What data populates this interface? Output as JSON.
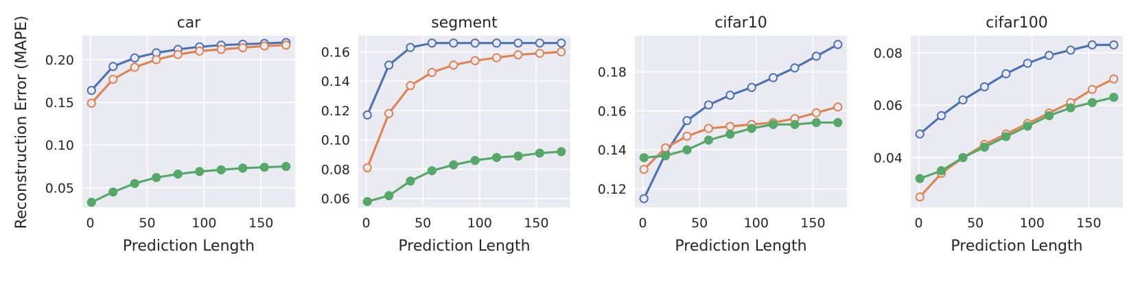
{
  "figure": {
    "ylabel": "Reconstruction Error (MAPE)"
  },
  "chart_data": [
    {
      "type": "line",
      "title": "car",
      "xlabel": "Prediction Length",
      "xlim": [
        -7,
        180
      ],
      "ylim": [
        0.027,
        0.228
      ],
      "xticks": [
        0,
        50,
        100,
        150
      ],
      "yticks": [
        0.05,
        0.1,
        0.15,
        0.2
      ],
      "ytick_labels": [
        "0.05",
        "0.10",
        "0.15",
        "0.20"
      ],
      "x": [
        1,
        20,
        39,
        58,
        77,
        96,
        115,
        134,
        153,
        172
      ],
      "series": [
        {
          "name": "blue",
          "color": "#4c72b0",
          "marker": "open",
          "values": [
            0.164,
            0.192,
            0.202,
            0.208,
            0.212,
            0.215,
            0.217,
            0.218,
            0.219,
            0.22
          ]
        },
        {
          "name": "orange",
          "color": "#dd8452",
          "marker": "open",
          "values": [
            0.149,
            0.177,
            0.191,
            0.2,
            0.206,
            0.21,
            0.212,
            0.214,
            0.216,
            0.217
          ]
        },
        {
          "name": "green",
          "color": "#55a868",
          "marker": "filled",
          "values": [
            0.033,
            0.045,
            0.055,
            0.062,
            0.066,
            0.069,
            0.071,
            0.073,
            0.074,
            0.075
          ]
        }
      ]
    },
    {
      "type": "line",
      "title": "segment",
      "xlabel": "Prediction Length",
      "xlim": [
        -7,
        180
      ],
      "ylim": [
        0.054,
        0.171
      ],
      "xticks": [
        0,
        50,
        100,
        150
      ],
      "yticks": [
        0.06,
        0.08,
        0.1,
        0.12,
        0.14,
        0.16
      ],
      "ytick_labels": [
        "0.06",
        "0.08",
        "0.10",
        "0.12",
        "0.14",
        "0.16"
      ],
      "x": [
        1,
        20,
        39,
        58,
        77,
        96,
        115,
        134,
        153,
        172
      ],
      "series": [
        {
          "name": "blue",
          "color": "#4c72b0",
          "marker": "open",
          "values": [
            0.117,
            0.151,
            0.163,
            0.166,
            0.166,
            0.166,
            0.166,
            0.166,
            0.166,
            0.166
          ]
        },
        {
          "name": "orange",
          "color": "#dd8452",
          "marker": "open",
          "values": [
            0.081,
            0.118,
            0.137,
            0.146,
            0.151,
            0.154,
            0.156,
            0.158,
            0.159,
            0.16
          ]
        },
        {
          "name": "green",
          "color": "#55a868",
          "marker": "filled",
          "values": [
            0.058,
            0.062,
            0.072,
            0.079,
            0.083,
            0.086,
            0.088,
            0.089,
            0.091,
            0.092
          ]
        }
      ]
    },
    {
      "type": "line",
      "title": "cifar10",
      "xlabel": "Prediction Length",
      "xlim": [
        -7,
        180
      ],
      "ylim": [
        0.1105,
        0.1985
      ],
      "xticks": [
        0,
        50,
        100,
        150
      ],
      "yticks": [
        0.12,
        0.14,
        0.16,
        0.18
      ],
      "ytick_labels": [
        "0.12",
        "0.14",
        "0.16",
        "0.18"
      ],
      "x": [
        1,
        20,
        39,
        58,
        77,
        96,
        115,
        134,
        153,
        172
      ],
      "series": [
        {
          "name": "blue",
          "color": "#4c72b0",
          "marker": "open",
          "values": [
            0.115,
            0.138,
            0.155,
            0.163,
            0.168,
            0.172,
            0.177,
            0.182,
            0.188,
            0.194
          ]
        },
        {
          "name": "orange",
          "color": "#dd8452",
          "marker": "open",
          "values": [
            0.13,
            0.141,
            0.147,
            0.151,
            0.152,
            0.153,
            0.154,
            0.156,
            0.159,
            0.162
          ]
        },
        {
          "name": "green",
          "color": "#55a868",
          "marker": "filled",
          "values": [
            0.136,
            0.137,
            0.14,
            0.145,
            0.148,
            0.151,
            0.153,
            0.153,
            0.154,
            0.154
          ]
        }
      ]
    },
    {
      "type": "line",
      "title": "cifar100",
      "xlabel": "Prediction Length",
      "xlim": [
        -7,
        180
      ],
      "ylim": [
        0.021,
        0.0865
      ],
      "xticks": [
        0,
        50,
        100,
        150
      ],
      "yticks": [
        0.04,
        0.06,
        0.08
      ],
      "ytick_labels": [
        "0.04",
        "0.06",
        "0.08"
      ],
      "x": [
        1,
        20,
        39,
        58,
        77,
        96,
        115,
        134,
        153,
        172
      ],
      "series": [
        {
          "name": "blue",
          "color": "#4c72b0",
          "marker": "open",
          "values": [
            0.049,
            0.056,
            0.062,
            0.067,
            0.072,
            0.076,
            0.079,
            0.081,
            0.083,
            0.083
          ]
        },
        {
          "name": "orange",
          "color": "#dd8452",
          "marker": "open",
          "values": [
            0.025,
            0.034,
            0.04,
            0.045,
            0.049,
            0.053,
            0.057,
            0.061,
            0.066,
            0.07
          ]
        },
        {
          "name": "green",
          "color": "#55a868",
          "marker": "filled",
          "values": [
            0.032,
            0.035,
            0.04,
            0.044,
            0.048,
            0.052,
            0.056,
            0.059,
            0.061,
            0.063
          ]
        }
      ]
    }
  ]
}
